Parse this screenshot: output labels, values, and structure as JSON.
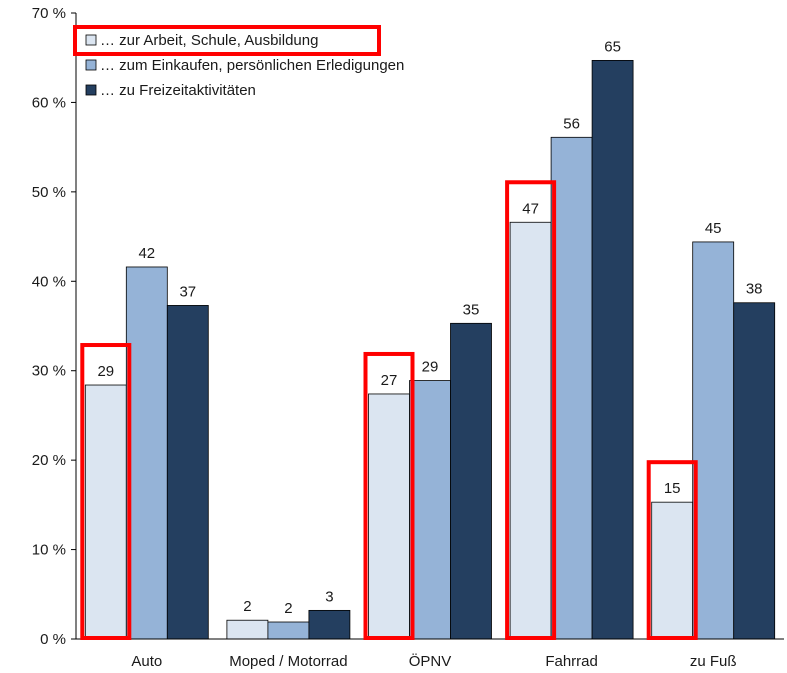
{
  "chart_data": {
    "type": "bar",
    "categories": [
      "Auto",
      "Moped / Motorrad",
      "ÖPNV",
      "Fahrrad",
      "zu Fuß"
    ],
    "series": [
      {
        "name": "… zur Arbeit, Schule, Ausbildung",
        "values": [
          29,
          2,
          27,
          47,
          15
        ],
        "color": "#dbe5f1"
      },
      {
        "name": "… zum Einkaufen, persönlichen Erledigungen",
        "values": [
          42,
          2,
          29,
          56,
          45
        ],
        "color": "#95b3d7"
      },
      {
        "name": "… zu Freizeitaktivitäten",
        "values": [
          37,
          3,
          35,
          65,
          38
        ],
        "color": "#243f60"
      }
    ],
    "bar_heights_exact": [
      [
        28.4,
        2.1,
        27.4,
        46.6,
        15.3
      ],
      [
        41.6,
        1.9,
        28.9,
        56.1,
        44.4
      ],
      [
        37.3,
        3.2,
        35.3,
        64.7,
        37.6
      ]
    ],
    "y_ticks": [
      "0 %",
      "10 %",
      "20 %",
      "30 %",
      "40 %",
      "50 %",
      "60 %",
      "70 %"
    ],
    "ylim": [
      0,
      70
    ],
    "grid": false,
    "legend_position": "top-left",
    "highlight_color": "#ff0000",
    "highlighted_series_index": 0,
    "highlighted_categories": [
      "Auto",
      "ÖPNV",
      "Fahrrad",
      "zu Fuß"
    ],
    "legend_highlighted_entry": 0
  }
}
